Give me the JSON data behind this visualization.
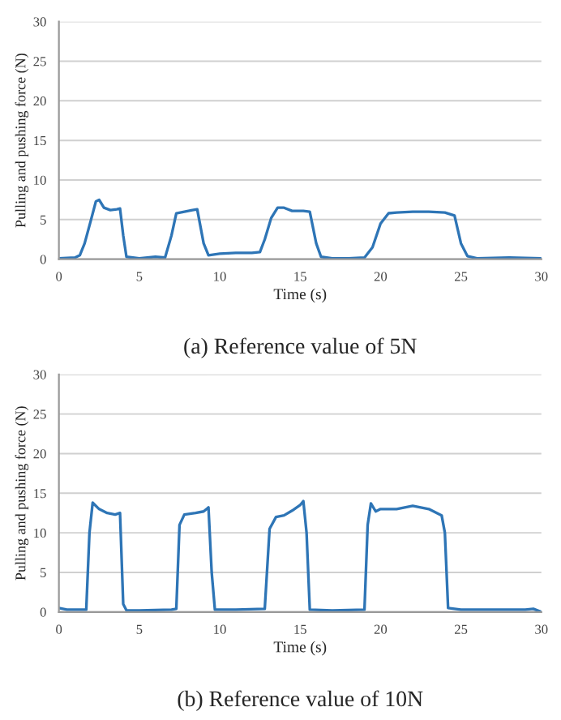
{
  "chart_data": [
    {
      "type": "line",
      "xlabel": "Time (s)",
      "ylabel": "Pulling and pushing force (N)",
      "xlim": [
        0,
        30
      ],
      "ylim": [
        0,
        30
      ],
      "xticks": [
        0,
        5,
        10,
        15,
        20,
        25,
        30
      ],
      "yticks": [
        0,
        5,
        10,
        15,
        20,
        25,
        30
      ],
      "grid": "y",
      "annotations": [
        "(a) Reference value of 5N"
      ],
      "series": [
        {
          "color": "#2e75b6",
          "x": [
            0,
            1,
            1.3,
            1.6,
            2,
            2.3,
            2.5,
            2.8,
            3.2,
            3.6,
            3.8,
            4,
            4.2,
            5,
            6,
            6.6,
            7,
            7.3,
            7.8,
            8.3,
            8.6,
            9,
            9.3,
            10,
            11,
            12,
            12.5,
            12.8,
            13.2,
            13.6,
            14,
            14.5,
            15.2,
            15.6,
            16,
            16.3,
            17,
            18,
            19,
            19.5,
            20,
            20.5,
            21,
            22,
            23,
            24,
            24.6,
            25,
            25.4,
            26,
            28,
            30
          ],
          "values": [
            0.1,
            0.2,
            0.5,
            2,
            5,
            7.3,
            7.5,
            6.5,
            6.2,
            6.3,
            6.4,
            3,
            0.3,
            0.1,
            0.3,
            0.2,
            3,
            5.8,
            6,
            6.2,
            6.3,
            2,
            0.5,
            0.7,
            0.8,
            0.8,
            0.9,
            2.5,
            5.2,
            6.5,
            6.5,
            6.1,
            6.1,
            6,
            2,
            0.3,
            0.1,
            0.1,
            0.2,
            1.5,
            4.5,
            5.8,
            5.9,
            6,
            6,
            5.9,
            5.5,
            2,
            0.4,
            0.1,
            0.2,
            0.1
          ]
        }
      ]
    },
    {
      "type": "line",
      "xlabel": "Time (s)",
      "ylabel": "Pulling and pushing force (N)",
      "xlim": [
        0,
        30
      ],
      "ylim": [
        0,
        30
      ],
      "xticks": [
        0,
        5,
        10,
        15,
        20,
        25,
        30
      ],
      "yticks": [
        0,
        5,
        10,
        15,
        20,
        25,
        30
      ],
      "grid": "y",
      "annotations": [
        "(b) Reference value of 10N"
      ],
      "series": [
        {
          "color": "#2e75b6",
          "x": [
            0,
            0.5,
            1.7,
            1.9,
            2.1,
            2.5,
            3,
            3.5,
            3.8,
            4,
            4.2,
            5,
            7,
            7.3,
            7.5,
            7.8,
            8.5,
            9,
            9.3,
            9.5,
            9.7,
            11,
            12.8,
            13.1,
            13.5,
            14,
            14.5,
            15,
            15.2,
            15.4,
            15.6,
            17,
            19,
            19.2,
            19.4,
            19.7,
            20,
            21,
            22,
            23,
            23.8,
            24,
            24.2,
            25,
            27,
            29,
            29.5,
            30
          ],
          "values": [
            0.5,
            0.3,
            0.3,
            10,
            13.8,
            13,
            12.5,
            12.3,
            12.5,
            1,
            0.2,
            0.2,
            0.3,
            0.4,
            11,
            12.3,
            12.5,
            12.7,
            13.2,
            5,
            0.3,
            0.3,
            0.4,
            10.5,
            12,
            12.2,
            12.8,
            13.5,
            14,
            10,
            0.3,
            0.2,
            0.3,
            11,
            13.7,
            12.7,
            13,
            13,
            13.4,
            13,
            12.2,
            10,
            0.5,
            0.3,
            0.3,
            0.3,
            0.4,
            0
          ]
        }
      ]
    }
  ]
}
